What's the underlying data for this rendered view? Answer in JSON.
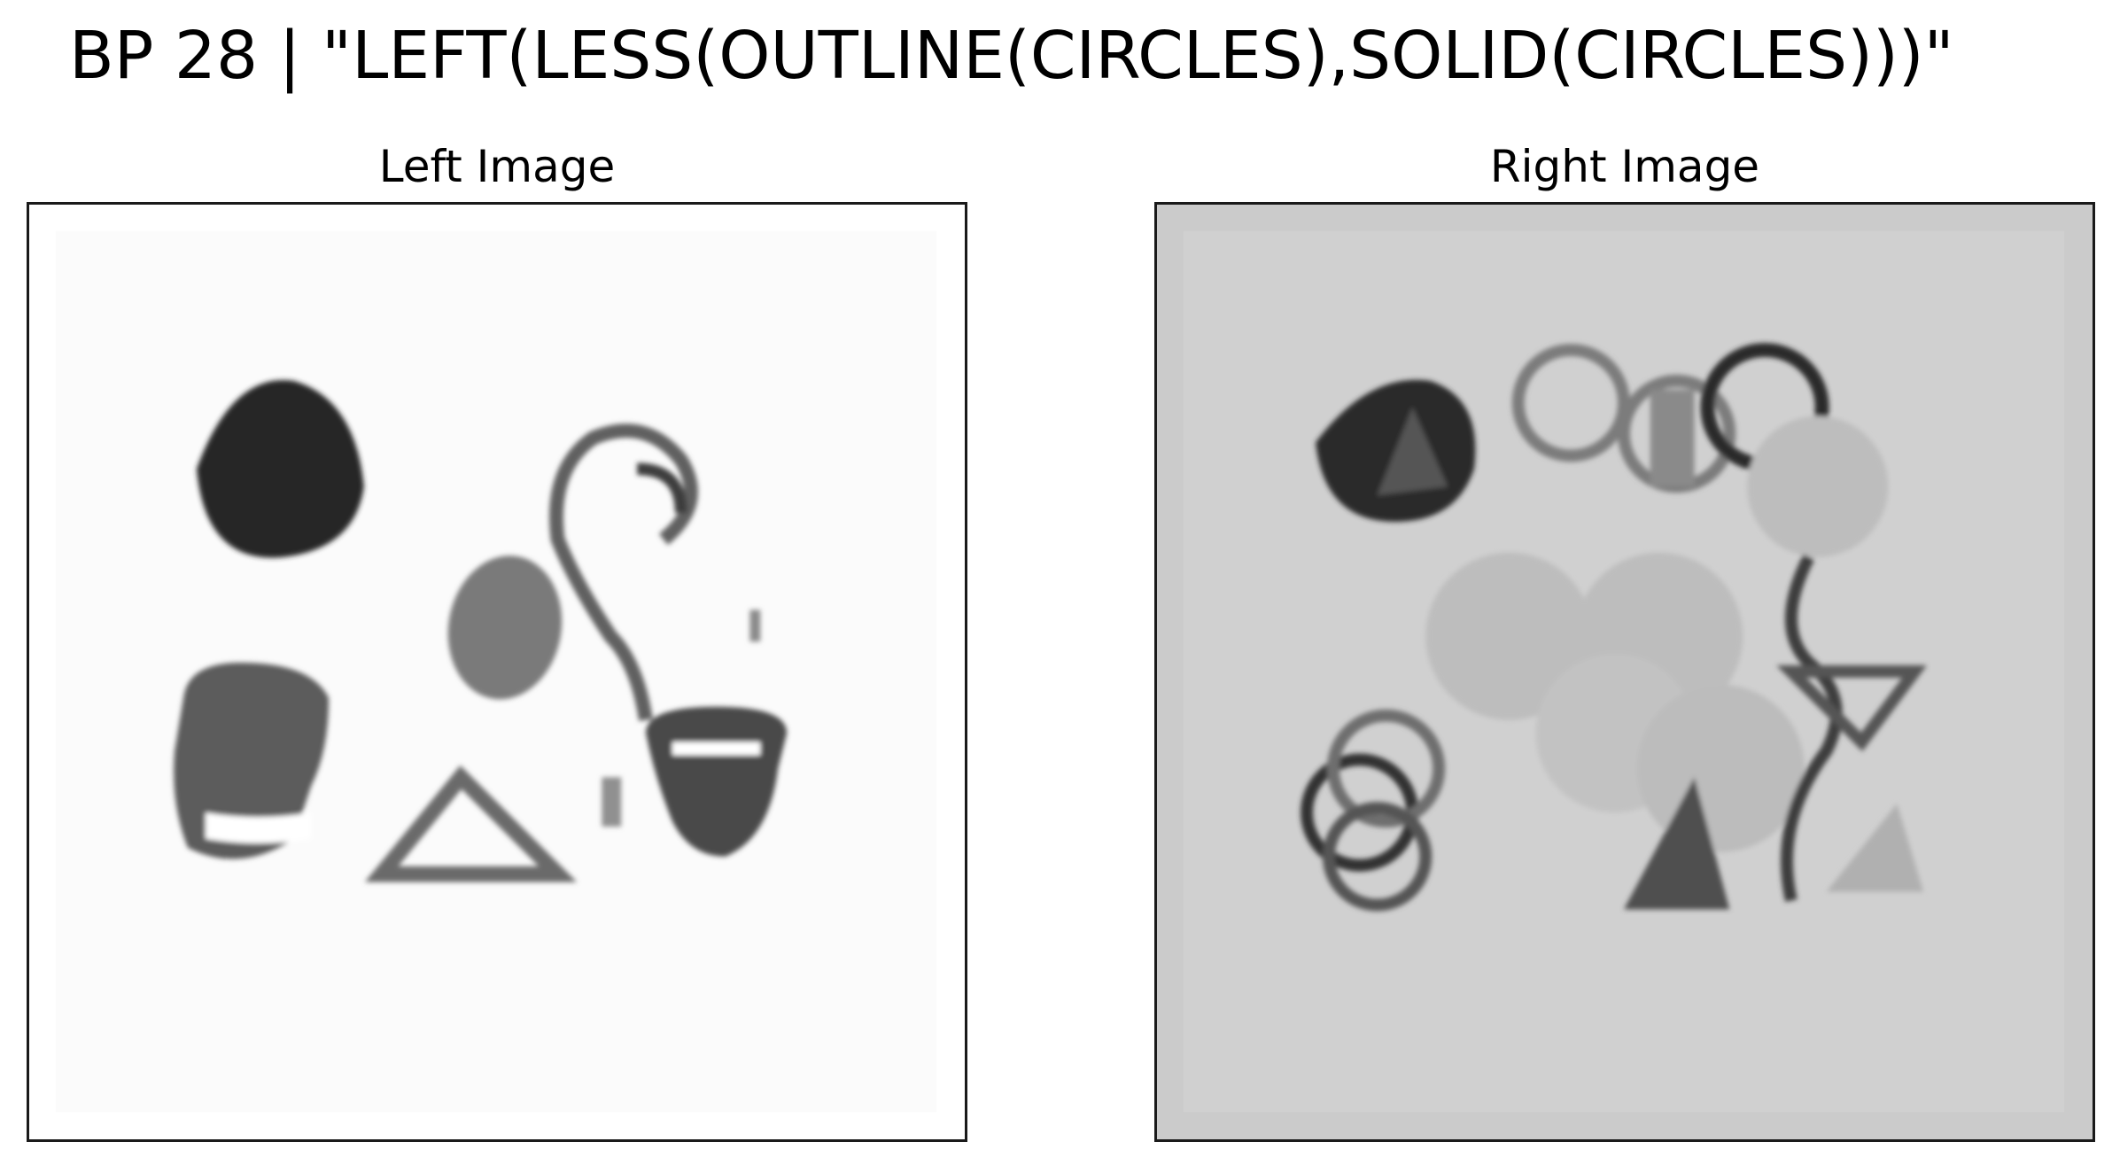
{
  "figure": {
    "title": "BP 28 | \"LEFT(LESS(OUTLINE(CIRCLES),SOLID(CIRCLES)))\""
  },
  "left_panel": {
    "title": "Left Image",
    "background_color": "#ffffff"
  },
  "right_panel": {
    "title": "Right Image",
    "background_color": "#cbcbcb"
  }
}
